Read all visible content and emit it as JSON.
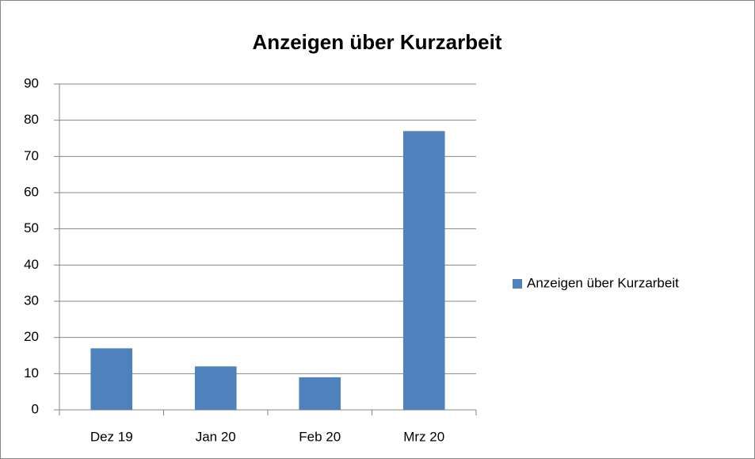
{
  "chart_data": {
    "type": "bar",
    "title": "Anzeigen über Kurzarbeit",
    "categories": [
      "Dez 19",
      "Jan 20",
      "Feb 20",
      "Mrz 20"
    ],
    "series": [
      {
        "name": "Anzeigen über Kurzarbeit",
        "color": "#4f81bd",
        "values": [
          17,
          12,
          9,
          77
        ]
      }
    ],
    "ylim": [
      0,
      90
    ],
    "yticks": [
      0,
      10,
      20,
      30,
      40,
      50,
      60,
      70,
      80,
      90
    ],
    "grid": true,
    "legend": "right"
  }
}
